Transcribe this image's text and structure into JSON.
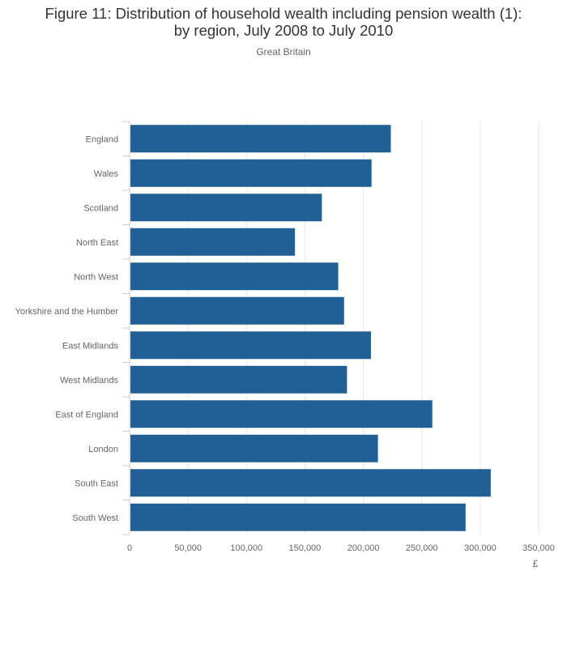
{
  "chart_data": {
    "type": "bar",
    "orientation": "horizontal",
    "title_line1": "Figure 11: Distribution of household wealth including pension wealth (1):",
    "title_line2": "by region, July 2008 to July 2010",
    "subtitle": "Great Britain",
    "categories": [
      "England",
      "Wales",
      "Scotland",
      "North East",
      "North West",
      "Yorkshire and the Humber",
      "East Midlands",
      "West Midlands",
      "East of England",
      "London",
      "South East",
      "South West"
    ],
    "values": [
      223500,
      207000,
      164500,
      141500,
      178500,
      183500,
      206500,
      186000,
      259000,
      212500,
      309000,
      287500
    ],
    "xlim": [
      0,
      350000
    ],
    "xticks": [
      0,
      50000,
      100000,
      150000,
      200000,
      250000,
      300000,
      350000
    ],
    "xtick_labels": [
      "0",
      "50,000",
      "100,000",
      "150,000",
      "200,000",
      "250,000",
      "300,000",
      "350,000"
    ],
    "xlabel": "£",
    "grid": true,
    "bar_color": "#206095",
    "grid_color": "#e6e6e6",
    "axis_color": "#cccccc"
  }
}
